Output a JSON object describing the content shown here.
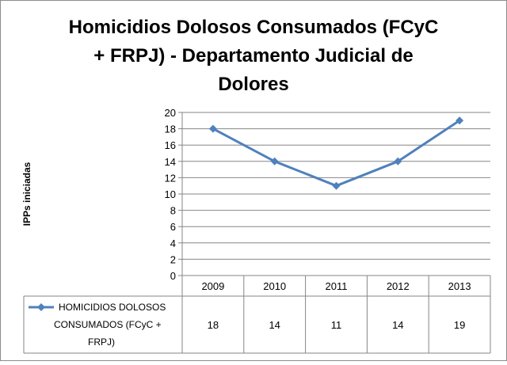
{
  "chart_data": {
    "type": "line",
    "title_lines": [
      "Homicidios Dolosos Consumados (FCyC",
      "+ FRPJ) - Departamento Judicial de",
      "Dolores"
    ],
    "ylabel": "IPPs iniciadas",
    "categories": [
      "2009",
      "2010",
      "2011",
      "2012",
      "2013"
    ],
    "ylim": [
      0,
      20
    ],
    "ytick_step": 2,
    "yticks": [
      "0",
      "2",
      "4",
      "6",
      "8",
      "10",
      "12",
      "14",
      "16",
      "18",
      "20"
    ],
    "grid": true,
    "series": [
      {
        "name": "HOMICIDIOS DOLOSOS CONSUMADOS (FCyC + FRPJ)",
        "legend_lines": [
          "HOMICIDIOS DOLOSOS",
          "CONSUMADOS (FCyC +",
          "FRPJ)"
        ],
        "values": [
          18,
          14,
          11,
          14,
          19
        ],
        "value_labels": [
          "18",
          "14",
          "11",
          "14",
          "19"
        ],
        "color": "#4f81bd"
      }
    ],
    "data_table": true
  }
}
